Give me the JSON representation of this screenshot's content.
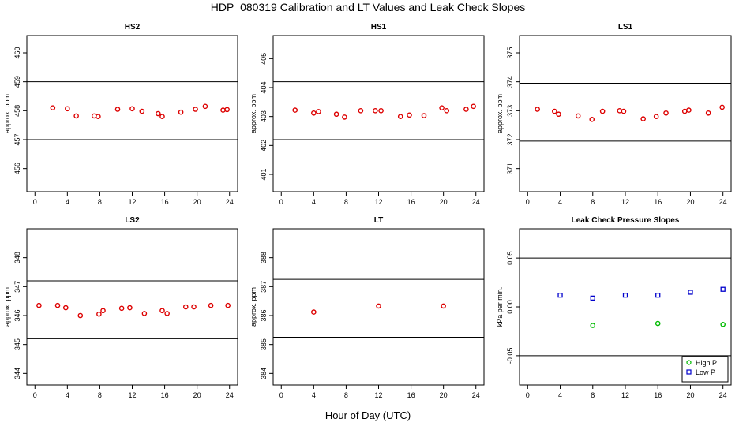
{
  "title": "HDP_080319  Calibration and LT Values and Leak Check Slopes",
  "xlabel": "Hour of Day (UTC)",
  "chart_data": [
    {
      "type": "scatter",
      "title": "HS2",
      "ylabel": "approx. ppm",
      "xlim": [
        -1,
        25
      ],
      "ylim": [
        455.2,
        460.6
      ],
      "xticks": [
        0,
        4,
        8,
        12,
        16,
        20,
        24
      ],
      "yticks": [
        456,
        457,
        458,
        459,
        460
      ],
      "hlines": [
        459,
        457
      ],
      "series": [
        {
          "color": "#dd0000",
          "marker": "circle",
          "x": [
            2.2,
            4,
            5.1,
            7.3,
            7.8,
            10.2,
            12,
            13.2,
            15.2,
            15.7,
            18,
            19.8,
            21,
            23.2,
            23.7
          ],
          "y": [
            458.1,
            458.07,
            457.82,
            457.82,
            457.8,
            458.05,
            458.07,
            457.98,
            457.9,
            457.8,
            457.95,
            458.05,
            458.15,
            458.02,
            458.04
          ]
        }
      ]
    },
    {
      "type": "scatter",
      "title": "HS1",
      "ylabel": "approx. ppm",
      "xlim": [
        -1,
        25
      ],
      "ylim": [
        400.4,
        405.8
      ],
      "xticks": [
        0,
        4,
        8,
        12,
        16,
        20,
        24
      ],
      "yticks": [
        401,
        402,
        403,
        404,
        405
      ],
      "hlines": [
        404.2,
        402.2
      ],
      "series": [
        {
          "color": "#dd0000",
          "marker": "circle",
          "x": [
            1.7,
            4,
            4.6,
            6.8,
            7.8,
            9.8,
            11.6,
            12.3,
            14.7,
            15.8,
            17.6,
            19.8,
            20.4,
            22.8,
            23.7
          ],
          "y": [
            403.22,
            403.12,
            403.17,
            403.08,
            402.98,
            403.2,
            403.2,
            403.2,
            403.0,
            403.05,
            403.03,
            403.3,
            403.2,
            403.25,
            403.35
          ]
        }
      ]
    },
    {
      "type": "scatter",
      "title": "LS1",
      "ylabel": "approx. ppm",
      "xlim": [
        -1,
        25
      ],
      "ylim": [
        370.2,
        375.6
      ],
      "xticks": [
        0,
        4,
        8,
        12,
        16,
        20,
        24
      ],
      "yticks": [
        371,
        372,
        373,
        374,
        375
      ],
      "hlines": [
        373.95,
        371.95
      ],
      "series": [
        {
          "color": "#dd0000",
          "marker": "circle",
          "x": [
            1.2,
            3.3,
            3.8,
            6.2,
            7.9,
            9.2,
            11.3,
            11.8,
            14.2,
            15.8,
            17,
            19.3,
            19.8,
            22.2,
            23.9
          ],
          "y": [
            373.05,
            372.98,
            372.88,
            372.82,
            372.7,
            372.98,
            373.0,
            372.98,
            372.72,
            372.8,
            372.92,
            372.98,
            373.02,
            372.92,
            373.12
          ]
        }
      ]
    },
    {
      "type": "scatter",
      "title": "LS2",
      "ylabel": "approx. ppm",
      "xlim": [
        -1,
        25
      ],
      "ylim": [
        343.6,
        349
      ],
      "xticks": [
        0,
        4,
        8,
        12,
        16,
        20,
        24
      ],
      "yticks": [
        344,
        345,
        346,
        347,
        348
      ],
      "hlines": [
        347.2,
        345.2
      ],
      "series": [
        {
          "color": "#dd0000",
          "marker": "circle",
          "x": [
            0.5,
            2.8,
            3.8,
            5.6,
            7.9,
            8.4,
            10.7,
            11.7,
            13.5,
            15.7,
            16.3,
            18.6,
            19.6,
            21.7,
            23.8
          ],
          "y": [
            346.35,
            346.35,
            346.27,
            346.0,
            346.05,
            346.17,
            346.25,
            346.27,
            346.07,
            346.17,
            346.07,
            346.3,
            346.3,
            346.35,
            346.35
          ]
        }
      ]
    },
    {
      "type": "scatter",
      "title": "LT",
      "ylabel": "approx. ppm",
      "xlim": [
        -1,
        25
      ],
      "ylim": [
        383.6,
        389
      ],
      "xticks": [
        0,
        4,
        8,
        12,
        16,
        20,
        24
      ],
      "yticks": [
        384,
        385,
        386,
        387,
        388
      ],
      "hlines": [
        387.25,
        385.25
      ],
      "series": [
        {
          "color": "#dd0000",
          "marker": "circle",
          "x": [
            4,
            12,
            20
          ],
          "y": [
            386.12,
            386.33,
            386.33
          ]
        }
      ]
    },
    {
      "type": "scatter",
      "title": "Leak Check Pressure Slopes",
      "ylabel": "kPa per min.",
      "xlim": [
        -1,
        25
      ],
      "ylim": [
        -0.08,
        0.08
      ],
      "xticks": [
        0,
        4,
        8,
        12,
        16,
        20,
        24
      ],
      "yticks": [
        -0.05,
        0.0,
        0.05
      ],
      "ytick_labels": [
        "-0.05",
        "0.00",
        "0.05"
      ],
      "hlines": [
        0.05,
        -0.05
      ],
      "legend": "bottom-right",
      "series": [
        {
          "name": "High P",
          "color": "#00bb00",
          "marker": "circle",
          "x": [
            8,
            16,
            24
          ],
          "y": [
            -0.019,
            -0.017,
            -0.018
          ]
        },
        {
          "name": "Low P",
          "color": "#0000cc",
          "marker": "square",
          "x": [
            4,
            8,
            12,
            16,
            20,
            24
          ],
          "y": [
            0.012,
            0.009,
            0.012,
            0.012,
            0.015,
            0.018
          ]
        }
      ]
    }
  ]
}
